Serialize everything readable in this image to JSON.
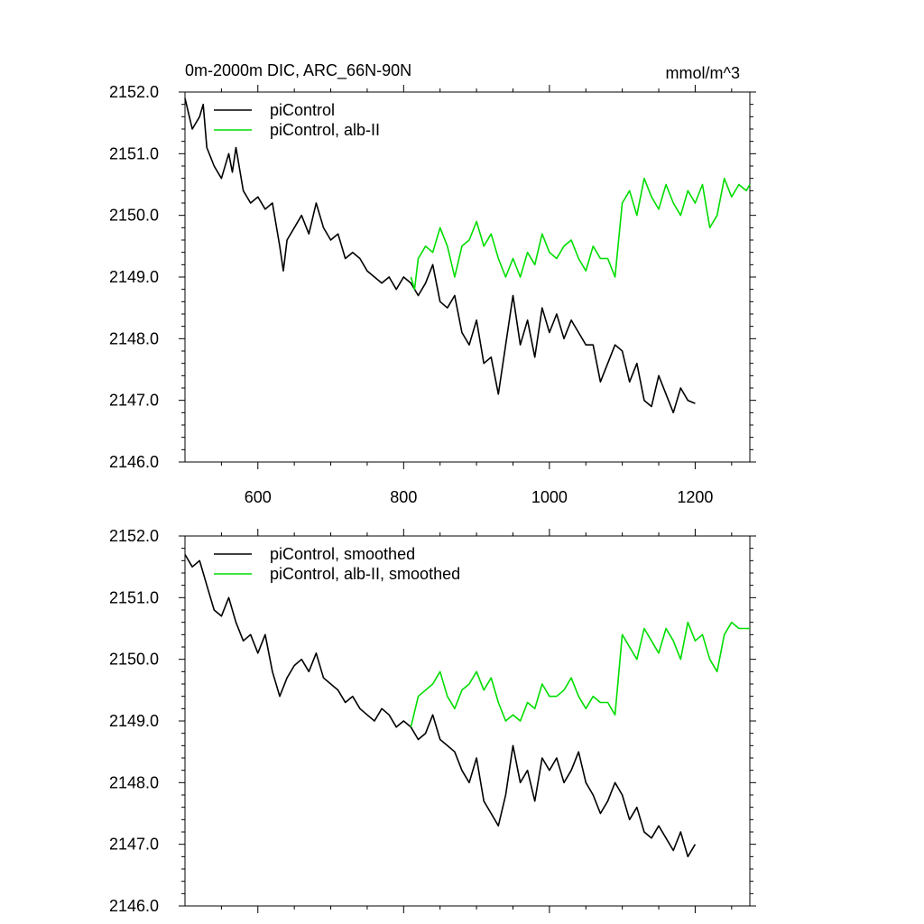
{
  "chart_data": [
    {
      "type": "line",
      "title": "0m-2000m DIC, ARC_66N-90N",
      "units": "mmol/m^3",
      "xlim": [
        500,
        1275
      ],
      "ylim": [
        2146.0,
        2152.0
      ],
      "xticks": [
        600,
        800,
        1000,
        1200
      ],
      "yticks": [
        2146.0,
        2147.0,
        2148.0,
        2149.0,
        2150.0,
        2151.0,
        2152.0
      ],
      "ytick_labels": [
        "2146.0",
        "2147.0",
        "2148.0",
        "2149.0",
        "2150.0",
        "2151.0",
        "2152.0"
      ],
      "xtick_labels": [
        "600",
        "800",
        "1000",
        "1200"
      ],
      "legend_position": "top-left",
      "series": [
        {
          "name": "piControl",
          "color": "#000000",
          "x": [
            500,
            510,
            520,
            525,
            530,
            540,
            550,
            560,
            565,
            570,
            580,
            590,
            600,
            610,
            620,
            630,
            635,
            640,
            650,
            660,
            670,
            680,
            690,
            700,
            710,
            720,
            730,
            740,
            750,
            760,
            770,
            780,
            790,
            800,
            810,
            820,
            830,
            840,
            850,
            860,
            870,
            880,
            890,
            900,
            910,
            920,
            930,
            940,
            950,
            960,
            970,
            980,
            990,
            1000,
            1010,
            1020,
            1030,
            1040,
            1050,
            1060,
            1070,
            1080,
            1090,
            1100,
            1110,
            1120,
            1130,
            1140,
            1150,
            1160,
            1170,
            1180,
            1190,
            1200
          ],
          "values": [
            2151.9,
            2151.4,
            2151.6,
            2151.8,
            2151.1,
            2150.8,
            2150.6,
            2151.0,
            2150.7,
            2151.1,
            2150.4,
            2150.2,
            2150.3,
            2150.1,
            2150.2,
            2149.5,
            2149.1,
            2149.6,
            2149.8,
            2150.0,
            2149.7,
            2150.2,
            2149.8,
            2149.6,
            2149.7,
            2149.3,
            2149.4,
            2149.3,
            2149.1,
            2149.0,
            2148.9,
            2149.0,
            2148.8,
            2149.0,
            2148.9,
            2148.7,
            2148.9,
            2149.2,
            2148.6,
            2148.5,
            2148.7,
            2148.1,
            2147.9,
            2148.3,
            2147.6,
            2147.7,
            2147.1,
            2147.9,
            2148.7,
            2147.9,
            2148.3,
            2147.7,
            2148.5,
            2148.1,
            2148.4,
            2148.0,
            2148.3,
            2148.1,
            2147.9,
            2147.9,
            2147.3,
            2147.6,
            2147.9,
            2147.8,
            2147.3,
            2147.6,
            2147.0,
            2146.9,
            2147.4,
            2147.1,
            2146.8,
            2147.2,
            2147.0,
            2146.95
          ]
        },
        {
          "name": "piControl, alb-II",
          "color": "#00dd00",
          "x": [
            810,
            815,
            820,
            830,
            840,
            850,
            860,
            870,
            880,
            890,
            900,
            910,
            920,
            930,
            940,
            950,
            960,
            970,
            980,
            990,
            1000,
            1010,
            1020,
            1030,
            1040,
            1050,
            1060,
            1070,
            1080,
            1090,
            1100,
            1110,
            1120,
            1130,
            1140,
            1150,
            1160,
            1170,
            1180,
            1190,
            1200,
            1210,
            1220,
            1230,
            1240,
            1250,
            1260,
            1270,
            1275
          ],
          "values": [
            2149.0,
            2148.8,
            2149.3,
            2149.5,
            2149.4,
            2149.8,
            2149.5,
            2149.0,
            2149.5,
            2149.6,
            2149.9,
            2149.5,
            2149.7,
            2149.3,
            2149.0,
            2149.3,
            2149.0,
            2149.4,
            2149.2,
            2149.7,
            2149.4,
            2149.3,
            2149.5,
            2149.6,
            2149.3,
            2149.1,
            2149.5,
            2149.3,
            2149.3,
            2149.0,
            2150.2,
            2150.4,
            2150.0,
            2150.6,
            2150.3,
            2150.1,
            2150.5,
            2150.2,
            2150.0,
            2150.4,
            2150.2,
            2150.5,
            2149.8,
            2150.0,
            2150.6,
            2150.3,
            2150.5,
            2150.4,
            2150.5
          ]
        }
      ]
    },
    {
      "type": "line",
      "title": "",
      "xlim": [
        500,
        1275
      ],
      "ylim": [
        2146.0,
        2152.0
      ],
      "xticks": [
        600,
        800,
        1000,
        1200
      ],
      "yticks": [
        2146.0,
        2147.0,
        2148.0,
        2149.0,
        2150.0,
        2151.0,
        2152.0
      ],
      "ytick_labels": [
        "2146.0",
        "2147.0",
        "2148.0",
        "2149.0",
        "2150.0",
        "2151.0",
        "2152.0"
      ],
      "xtick_labels": [],
      "legend_position": "top-left",
      "series": [
        {
          "name": "piControl, smoothed",
          "color": "#000000",
          "x": [
            500,
            510,
            520,
            530,
            540,
            550,
            560,
            570,
            580,
            590,
            600,
            610,
            620,
            630,
            640,
            650,
            660,
            670,
            680,
            690,
            700,
            710,
            720,
            730,
            740,
            750,
            760,
            770,
            780,
            790,
            800,
            810,
            820,
            830,
            840,
            850,
            860,
            870,
            880,
            890,
            900,
            910,
            920,
            930,
            940,
            950,
            960,
            970,
            980,
            990,
            1000,
            1010,
            1020,
            1030,
            1040,
            1050,
            1060,
            1070,
            1080,
            1090,
            1100,
            1110,
            1120,
            1130,
            1140,
            1150,
            1160,
            1170,
            1180,
            1190,
            1200
          ],
          "values": [
            2151.7,
            2151.5,
            2151.6,
            2151.2,
            2150.8,
            2150.7,
            2151.0,
            2150.6,
            2150.3,
            2150.4,
            2150.1,
            2150.4,
            2149.8,
            2149.4,
            2149.7,
            2149.9,
            2150.0,
            2149.8,
            2150.1,
            2149.7,
            2149.6,
            2149.5,
            2149.3,
            2149.4,
            2149.2,
            2149.1,
            2149.0,
            2149.2,
            2149.1,
            2148.9,
            2149.0,
            2148.9,
            2148.7,
            2148.8,
            2149.1,
            2148.7,
            2148.6,
            2148.5,
            2148.2,
            2148.0,
            2148.4,
            2147.7,
            2147.5,
            2147.3,
            2147.8,
            2148.6,
            2148.0,
            2148.2,
            2147.7,
            2148.4,
            2148.2,
            2148.4,
            2148.0,
            2148.2,
            2148.5,
            2148.0,
            2147.8,
            2147.5,
            2147.7,
            2148.0,
            2147.8,
            2147.4,
            2147.6,
            2147.2,
            2147.1,
            2147.3,
            2147.1,
            2146.9,
            2147.2,
            2146.8,
            2147.0
          ]
        },
        {
          "name": "piControl, alb-II, smoothed",
          "color": "#00dd00",
          "x": [
            810,
            820,
            830,
            840,
            850,
            860,
            870,
            880,
            890,
            900,
            910,
            920,
            930,
            940,
            950,
            960,
            970,
            980,
            990,
            1000,
            1010,
            1020,
            1030,
            1040,
            1050,
            1060,
            1070,
            1080,
            1090,
            1100,
            1110,
            1120,
            1130,
            1140,
            1150,
            1160,
            1170,
            1180,
            1190,
            1200,
            1210,
            1220,
            1230,
            1240,
            1250,
            1260,
            1270,
            1275
          ],
          "values": [
            2148.9,
            2149.4,
            2149.5,
            2149.6,
            2149.8,
            2149.4,
            2149.2,
            2149.5,
            2149.6,
            2149.8,
            2149.5,
            2149.7,
            2149.3,
            2149.0,
            2149.1,
            2149.0,
            2149.3,
            2149.2,
            2149.6,
            2149.4,
            2149.4,
            2149.5,
            2149.7,
            2149.4,
            2149.2,
            2149.4,
            2149.3,
            2149.3,
            2149.1,
            2150.4,
            2150.2,
            2150.0,
            2150.5,
            2150.3,
            2150.1,
            2150.5,
            2150.3,
            2150.0,
            2150.6,
            2150.3,
            2150.4,
            2150.0,
            2149.8,
            2150.4,
            2150.6,
            2150.5,
            2150.5,
            2150.5
          ]
        }
      ]
    }
  ]
}
